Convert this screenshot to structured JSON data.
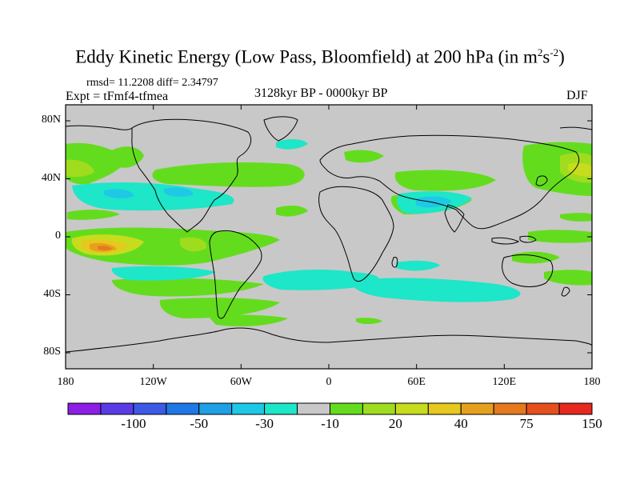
{
  "title": {
    "main": "Eddy Kinetic Energy (Low Pass, Bloomfield) at 200 hPa (in m",
    "sup1": "2",
    "mid": "s",
    "sup2": "-2",
    "end": ")"
  },
  "stats": "rmsd= 11.2208  diff= 2.34797",
  "expt": "Expt = tFmf4-tfmea",
  "period": "3128kyr BP - 0000kyr BP",
  "season": "DJF",
  "y_ticks": [
    "80N",
    "40N",
    "0",
    "40S",
    "80S"
  ],
  "x_ticks": [
    "180",
    "120W",
    "60W",
    "0",
    "60E",
    "120E",
    "180"
  ],
  "colorbar": {
    "colors": [
      "#8c1ee6",
      "#5a3ce6",
      "#3c5ae6",
      "#1e78e6",
      "#1ea0e6",
      "#1ec8e6",
      "#1ee6c8",
      "#c8c8c8",
      "#64dc1e",
      "#a0dc1e",
      "#c8dc1e",
      "#e6c81e",
      "#e6a01e",
      "#e6781e",
      "#e6501e",
      "#e6281e"
    ],
    "labels": [
      "-100",
      "-50",
      "-30",
      "-10",
      "20",
      "40",
      "75",
      "150"
    ]
  }
}
